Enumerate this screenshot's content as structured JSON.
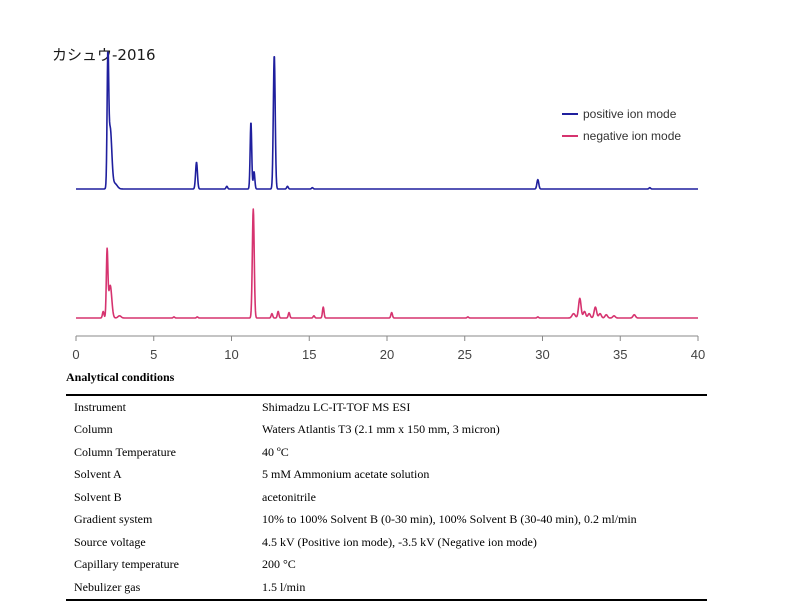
{
  "chart_data": {
    "type": "line",
    "title": "カシュウ-2016",
    "xlabel": "",
    "ylabel": "",
    "xlim": [
      0,
      40
    ],
    "xticks": [
      "0",
      "5",
      "10",
      "15",
      "20",
      "25",
      "30",
      "35",
      "40"
    ],
    "grid": false,
    "legend_position": "top-right",
    "series": [
      {
        "name": "positive ion mode",
        "color": "#1f1f9e",
        "peaks": [
          {
            "x": 2.05,
            "h": 0.93,
            "w": 0.05
          },
          {
            "x": 2.2,
            "h": 0.45,
            "w": 0.1
          },
          {
            "x": 2.5,
            "h": 0.04,
            "w": 0.15
          },
          {
            "x": 7.75,
            "h": 0.2,
            "w": 0.06
          },
          {
            "x": 9.7,
            "h": 0.02,
            "w": 0.05
          },
          {
            "x": 11.25,
            "h": 0.5,
            "w": 0.05
          },
          {
            "x": 11.45,
            "h": 0.13,
            "w": 0.05
          },
          {
            "x": 12.75,
            "h": 1.0,
            "w": 0.06
          },
          {
            "x": 13.6,
            "h": 0.02,
            "w": 0.05
          },
          {
            "x": 15.2,
            "h": 0.01,
            "w": 0.05
          },
          {
            "x": 29.7,
            "h": 0.07,
            "w": 0.06
          },
          {
            "x": 36.9,
            "h": 0.01,
            "w": 0.05
          }
        ]
      },
      {
        "name": "negative ion mode",
        "color": "#d6336f",
        "peaks": [
          {
            "x": 1.75,
            "h": 0.06,
            "w": 0.05
          },
          {
            "x": 2.0,
            "h": 0.6,
            "w": 0.05
          },
          {
            "x": 2.2,
            "h": 0.3,
            "w": 0.1
          },
          {
            "x": 2.8,
            "h": 0.02,
            "w": 0.1
          },
          {
            "x": 6.3,
            "h": 0.01,
            "w": 0.05
          },
          {
            "x": 7.8,
            "h": 0.01,
            "w": 0.05
          },
          {
            "x": 11.4,
            "h": 1.0,
            "w": 0.06
          },
          {
            "x": 12.6,
            "h": 0.04,
            "w": 0.05
          },
          {
            "x": 13.0,
            "h": 0.06,
            "w": 0.05
          },
          {
            "x": 13.7,
            "h": 0.05,
            "w": 0.05
          },
          {
            "x": 15.3,
            "h": 0.02,
            "w": 0.05
          },
          {
            "x": 15.9,
            "h": 0.1,
            "w": 0.05
          },
          {
            "x": 20.3,
            "h": 0.05,
            "w": 0.05
          },
          {
            "x": 25.2,
            "h": 0.01,
            "w": 0.05
          },
          {
            "x": 29.7,
            "h": 0.01,
            "w": 0.05
          },
          {
            "x": 32.0,
            "h": 0.04,
            "w": 0.1
          },
          {
            "x": 32.4,
            "h": 0.18,
            "w": 0.08
          },
          {
            "x": 32.7,
            "h": 0.06,
            "w": 0.08
          },
          {
            "x": 33.0,
            "h": 0.04,
            "w": 0.08
          },
          {
            "x": 33.4,
            "h": 0.1,
            "w": 0.08
          },
          {
            "x": 33.7,
            "h": 0.04,
            "w": 0.08
          },
          {
            "x": 34.1,
            "h": 0.03,
            "w": 0.08
          },
          {
            "x": 34.6,
            "h": 0.02,
            "w": 0.08
          },
          {
            "x": 35.9,
            "h": 0.03,
            "w": 0.08
          }
        ]
      }
    ]
  },
  "conditions": {
    "heading": "Analytical conditions",
    "rows": [
      {
        "param": "Instrument",
        "value": "Shimadzu LC-IT-TOF MS ESI"
      },
      {
        "param": "Column",
        "value": "Waters Atlantis T3 (2.1 mm x 150 mm, 3 micron)"
      },
      {
        "param": "Column Temperature",
        "value": "40 ºC"
      },
      {
        "param": "Solvent A",
        "value": "5 mM Ammonium acetate solution"
      },
      {
        "param": "Solvent B",
        "value": "acetonitrile"
      },
      {
        "param": "Gradient system",
        "value": "10% to 100% Solvent B (0-30 min), 100% Solvent B (30-40 min), 0.2 ml/min"
      },
      {
        "param": "Source voltage",
        "value": "4.5 kV (Positive ion mode), -3.5 kV (Negative ion mode)"
      },
      {
        "param": "Capillary temperature",
        "value": "200 °C"
      },
      {
        "param": "Nebulizer gas",
        "value": "1.5 l/min"
      }
    ]
  }
}
